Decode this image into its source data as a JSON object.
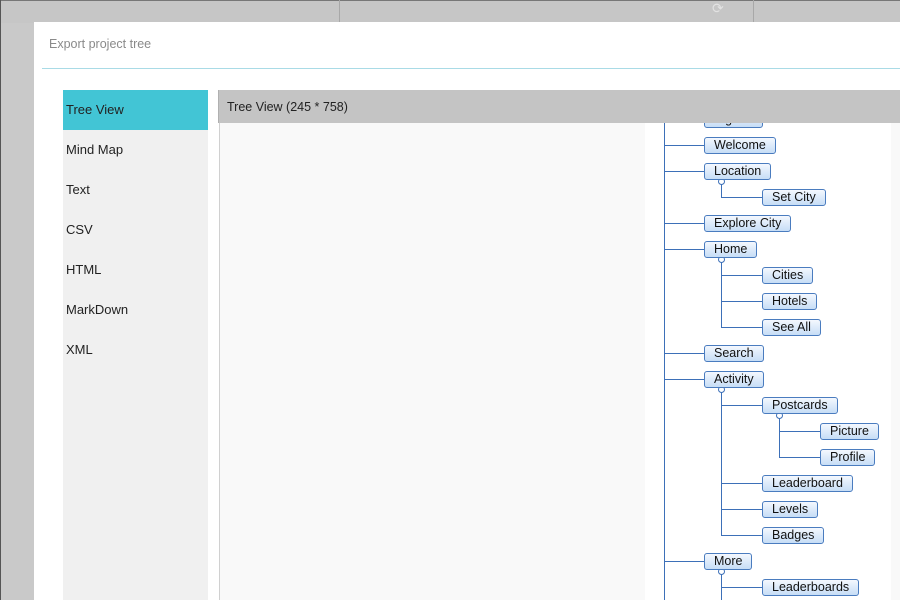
{
  "dialog": {
    "title": "Export project tree"
  },
  "sidebar": {
    "items": [
      {
        "label": "Tree View",
        "active": true
      },
      {
        "label": "Mind Map"
      },
      {
        "label": "Text"
      },
      {
        "label": "CSV"
      },
      {
        "label": "HTML"
      },
      {
        "label": "MarkDown"
      },
      {
        "label": "XML"
      }
    ]
  },
  "preview": {
    "header": "Tree View (245 * 758)"
  },
  "colors": {
    "active": "#42c5d5",
    "node_border": "#4a7cbf",
    "connector": "#3d70b8"
  },
  "tree": [
    {
      "label": "Sign In",
      "depth": 1
    },
    {
      "label": "Welcome",
      "depth": 1
    },
    {
      "label": "Location",
      "depth": 1
    },
    {
      "label": "Set City",
      "depth": 2
    },
    {
      "label": "Explore City",
      "depth": 1
    },
    {
      "label": "Home",
      "depth": 1
    },
    {
      "label": "Cities",
      "depth": 2
    },
    {
      "label": "Hotels",
      "depth": 2
    },
    {
      "label": "See All",
      "depth": 2
    },
    {
      "label": "Search",
      "depth": 1
    },
    {
      "label": "Activity",
      "depth": 1
    },
    {
      "label": "Postcards",
      "depth": 2
    },
    {
      "label": "Picture",
      "depth": 3
    },
    {
      "label": "Profile",
      "depth": 3
    },
    {
      "label": "Leaderboard",
      "depth": 2
    },
    {
      "label": "Levels",
      "depth": 2
    },
    {
      "label": "Badges",
      "depth": 2
    },
    {
      "label": "More",
      "depth": 1
    },
    {
      "label": "Leaderboards",
      "depth": 2
    }
  ]
}
